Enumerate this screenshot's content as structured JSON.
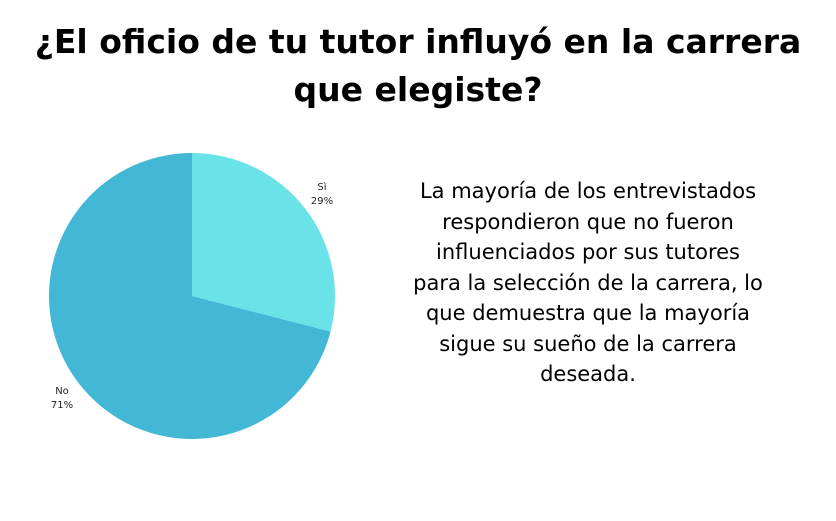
{
  "page": {
    "title": "¿El oficio de tu tutor influyó en la carrera que elegiste?",
    "description": "La mayoría de los entrevistados respondieron que no fueron influenciados por sus tutores para la selección de la carrera, lo que demuestra que la mayoría sigue su sueño de la carrera deseada."
  },
  "chart_data": {
    "type": "pie",
    "title": "¿El oficio de tu tutor influyó en la carrera que elegiste?",
    "slices": [
      {
        "label": "Sì",
        "value": 29,
        "percent_label": "29%",
        "color": "#6ae3e8"
      },
      {
        "label": "No",
        "value": 71,
        "percent_label": "71%",
        "color": "#43b7d6"
      }
    ],
    "legend": "none",
    "labels": "outside"
  }
}
